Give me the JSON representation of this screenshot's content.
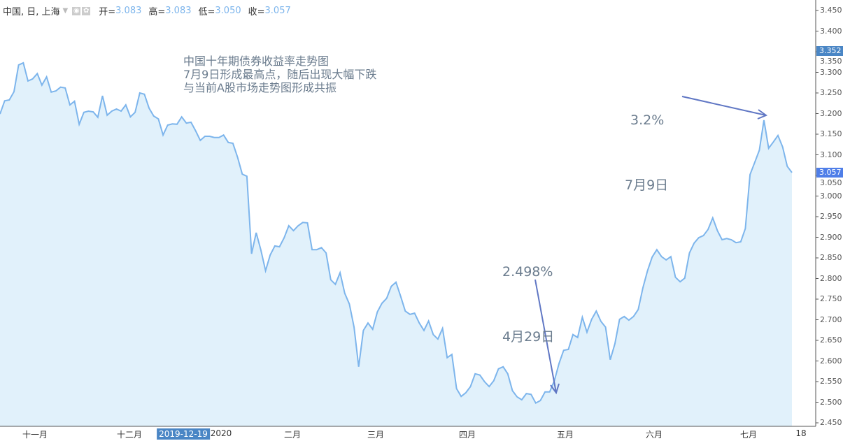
{
  "header": {
    "symbol": "中国, 日, 上海",
    "icons": [
      "eye-icon",
      "gear-icon"
    ],
    "open_label": "开=",
    "open": "3.083",
    "high_label": "高=",
    "high": "3.083",
    "low_label": "低=",
    "low": "3.050",
    "close_label": "收=",
    "close": "3.057"
  },
  "notes": {
    "title_lines": [
      "中国十年期债券收益率走势图",
      "7月9日形成最高点，随后出现大幅下跌",
      "与当前A股市场走势图形成共振"
    ],
    "high_value": "3.2%",
    "high_date": "7月9日",
    "low_value": "2.498%",
    "low_date": "4月29日"
  },
  "colors": {
    "line": "#7db5ec",
    "fill": "#e1f1fb",
    "arrow": "#6077c4",
    "last_price_tag": "#4f7ee8",
    "crosshair_tag": "#4a86c5",
    "text": "#6b7c8e"
  },
  "chart_data": {
    "type": "area",
    "ylim": [
      2.45,
      3.45
    ],
    "y_axis_side": "right",
    "y_ticks": [
      "2.450",
      "2.500",
      "2.550",
      "2.600",
      "2.650",
      "2.700",
      "2.750",
      "2.800",
      "2.850",
      "2.900",
      "2.950",
      "3.000",
      "3.050",
      "3.100",
      "3.150",
      "3.200",
      "3.250",
      "3.300",
      "3.350",
      "3.400",
      "3.450"
    ],
    "x_ticks": [
      "十一月",
      "十二月",
      "2019-12-19",
      "2020",
      "二月",
      "三月",
      "四月",
      "五月",
      "六月",
      "七月",
      "18"
    ],
    "highlighted_x_tick": "2019-12-19",
    "last_value_tag": "3.057",
    "crosshair_value_tag": "3.352",
    "grid": false,
    "values": [
      3.199,
      3.231,
      3.233,
      3.253,
      3.318,
      3.323,
      3.279,
      3.284,
      3.297,
      3.269,
      3.289,
      3.252,
      3.255,
      3.264,
      3.262,
      3.221,
      3.23,
      3.174,
      3.203,
      3.206,
      3.204,
      3.191,
      3.243,
      3.196,
      3.206,
      3.211,
      3.206,
      3.221,
      3.192,
      3.203,
      3.25,
      3.247,
      3.213,
      3.194,
      3.187,
      3.148,
      3.172,
      3.175,
      3.174,
      3.192,
      3.177,
      3.179,
      3.158,
      3.135,
      3.145,
      3.145,
      3.142,
      3.142,
      3.148,
      3.13,
      3.128,
      3.094,
      3.053,
      3.048,
      2.86,
      2.911,
      2.869,
      2.819,
      2.857,
      2.879,
      2.877,
      2.899,
      2.928,
      2.916,
      2.928,
      2.936,
      2.935,
      2.87,
      2.87,
      2.875,
      2.862,
      2.797,
      2.786,
      2.814,
      2.764,
      2.738,
      2.682,
      2.586,
      2.674,
      2.692,
      2.677,
      2.719,
      2.74,
      2.752,
      2.781,
      2.791,
      2.757,
      2.721,
      2.713,
      2.716,
      2.692,
      2.674,
      2.697,
      2.664,
      2.653,
      2.679,
      2.608,
      2.616,
      2.533,
      2.514,
      2.523,
      2.538,
      2.569,
      2.566,
      2.55,
      2.538,
      2.552,
      2.581,
      2.586,
      2.569,
      2.528,
      2.513,
      2.506,
      2.521,
      2.519,
      2.498,
      2.504,
      2.525,
      2.525,
      2.552,
      2.594,
      2.626,
      2.628,
      2.664,
      2.657,
      2.706,
      2.67,
      2.701,
      2.721,
      2.696,
      2.682,
      2.603,
      2.642,
      2.701,
      2.708,
      2.699,
      2.708,
      2.725,
      2.777,
      2.819,
      2.852,
      2.87,
      2.853,
      2.845,
      2.853,
      2.803,
      2.792,
      2.801,
      2.862,
      2.886,
      2.899,
      2.904,
      2.919,
      2.947,
      2.916,
      2.894,
      2.897,
      2.894,
      2.887,
      2.889,
      2.921,
      3.052,
      3.081,
      3.111,
      3.184,
      3.116,
      3.131,
      3.147,
      3.119,
      3.072,
      3.057
    ]
  }
}
